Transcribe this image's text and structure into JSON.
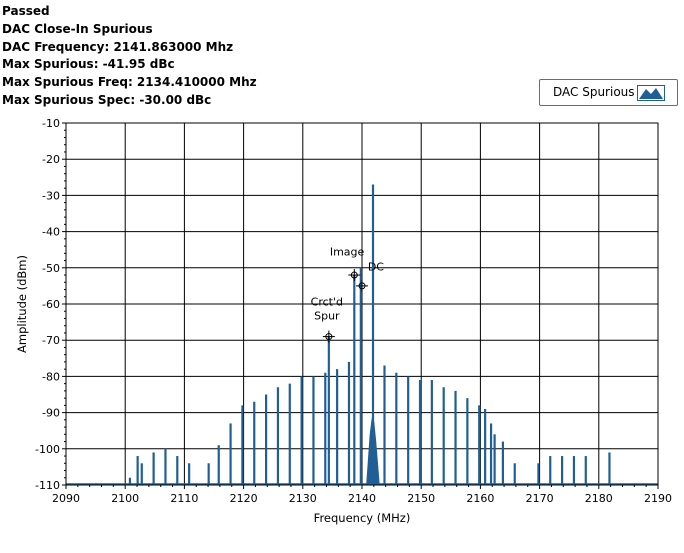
{
  "info": {
    "status": "Passed",
    "test_name": "DAC Close-In Spurious",
    "dac_frequency": "DAC Frequency: 2141.863000 Mhz",
    "max_spurious": "Max Spurious: -41.95 dBc",
    "max_spurious_freq": "Max Spurious Freq: 2134.410000 Mhz",
    "max_spurious_spec": "Max Spurious Spec: -30.00 dBc"
  },
  "legend": {
    "label": "DAC Spurious"
  },
  "colors": {
    "trace": "#1f5f96",
    "grid": "#000000",
    "plot_bg": "#ffffff"
  },
  "chart_data": {
    "type": "line",
    "xlabel": "Frequency (MHz)",
    "ylabel": "Amplitude (dBm)",
    "xlim": [
      2090,
      2190
    ],
    "ylim": [
      -110,
      -10
    ],
    "xticks": [
      2090,
      2100,
      2110,
      2120,
      2130,
      2140,
      2150,
      2160,
      2170,
      2180,
      2190
    ],
    "yticks": [
      -10,
      -20,
      -30,
      -40,
      -50,
      -60,
      -70,
      -80,
      -90,
      -100,
      -110
    ],
    "grid": true,
    "noise_floor": -110,
    "series": [
      {
        "name": "DAC Spurious",
        "spurs": [
          {
            "x": 2100.8,
            "y": -108
          },
          {
            "x": 2102.1,
            "y": -102
          },
          {
            "x": 2102.8,
            "y": -104
          },
          {
            "x": 2104.8,
            "y": -101
          },
          {
            "x": 2106.8,
            "y": -100
          },
          {
            "x": 2108.8,
            "y": -102
          },
          {
            "x": 2110.8,
            "y": -104
          },
          {
            "x": 2114.1,
            "y": -104
          },
          {
            "x": 2115.8,
            "y": -99
          },
          {
            "x": 2117.8,
            "y": -93
          },
          {
            "x": 2119.8,
            "y": -88
          },
          {
            "x": 2121.8,
            "y": -87
          },
          {
            "x": 2123.8,
            "y": -85
          },
          {
            "x": 2125.8,
            "y": -83
          },
          {
            "x": 2127.8,
            "y": -82
          },
          {
            "x": 2129.8,
            "y": -80
          },
          {
            "x": 2131.8,
            "y": -80
          },
          {
            "x": 2133.8,
            "y": -79
          },
          {
            "x": 2134.4,
            "y": -69
          },
          {
            "x": 2135.8,
            "y": -78
          },
          {
            "x": 2137.8,
            "y": -76
          },
          {
            "x": 2138.7,
            "y": -52
          },
          {
            "x": 2139.8,
            "y": -50
          },
          {
            "x": 2141.86,
            "y": -27
          },
          {
            "x": 2143.8,
            "y": -77
          },
          {
            "x": 2145.8,
            "y": -79
          },
          {
            "x": 2147.8,
            "y": -80
          },
          {
            "x": 2149.8,
            "y": -81
          },
          {
            "x": 2151.8,
            "y": -81
          },
          {
            "x": 2153.8,
            "y": -83
          },
          {
            "x": 2155.8,
            "y": -84
          },
          {
            "x": 2157.8,
            "y": -86
          },
          {
            "x": 2159.8,
            "y": -88
          },
          {
            "x": 2160.8,
            "y": -89
          },
          {
            "x": 2161.8,
            "y": -93
          },
          {
            "x": 2162.4,
            "y": -96
          },
          {
            "x": 2163.8,
            "y": -98
          },
          {
            "x": 2165.8,
            "y": -104
          },
          {
            "x": 2169.8,
            "y": -104
          },
          {
            "x": 2171.8,
            "y": -102
          },
          {
            "x": 2173.8,
            "y": -102
          },
          {
            "x": 2175.8,
            "y": -102
          },
          {
            "x": 2177.8,
            "y": -102
          },
          {
            "x": 2181.8,
            "y": -101
          }
        ],
        "carrier_hump": [
          {
            "x": 2140.7,
            "y": -110
          },
          {
            "x": 2141.0,
            "y": -103
          },
          {
            "x": 2141.3,
            "y": -96
          },
          {
            "x": 2141.6,
            "y": -92
          },
          {
            "x": 2141.86,
            "y": -90
          },
          {
            "x": 2142.1,
            "y": -93
          },
          {
            "x": 2142.4,
            "y": -98
          },
          {
            "x": 2142.7,
            "y": -104
          },
          {
            "x": 2143.0,
            "y": -110
          }
        ]
      }
    ],
    "annotations": [
      {
        "text": "Image",
        "x": 2139.0,
        "y": -51
      },
      {
        "text": "DC",
        "x": 2141.0,
        "y": -53
      },
      {
        "text": "Crct'd",
        "x": 2134.4,
        "y": -69
      },
      {
        "text": "Spur",
        "x": 2134.4,
        "y": -69
      }
    ]
  }
}
